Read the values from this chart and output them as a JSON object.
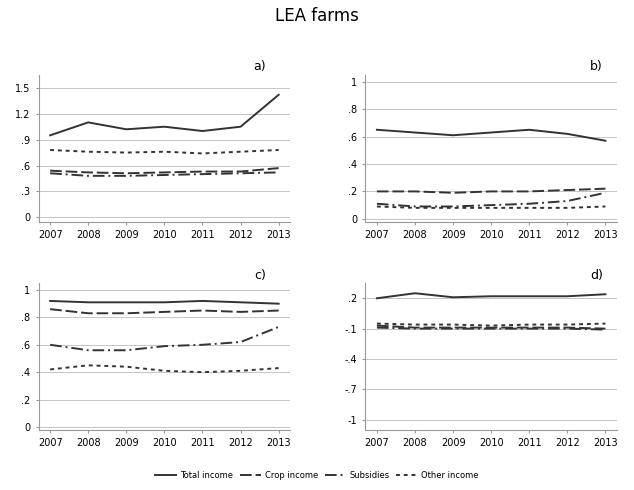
{
  "title": "LEA farms",
  "years": [
    2007,
    2008,
    2009,
    2010,
    2011,
    2012,
    2013
  ],
  "panel_labels": [
    "a)",
    "b)",
    "c)",
    "d)"
  ],
  "panel_a": {
    "ylim": [
      -0.05,
      1.65
    ],
    "yticks": [
      0,
      0.3,
      0.6,
      0.9,
      1.2,
      1.5
    ],
    "ytick_labels": [
      "0",
      ".3",
      ".6",
      ".9",
      "1.2",
      "1.5"
    ],
    "series": [
      {
        "values": [
          0.95,
          1.1,
          1.02,
          1.05,
          1.0,
          1.05,
          1.42
        ],
        "style": "solid",
        "lw": 1.4
      },
      {
        "values": [
          0.78,
          0.76,
          0.75,
          0.76,
          0.74,
          0.76,
          0.78
        ],
        "style": "dotted",
        "lw": 1.4
      },
      {
        "values": [
          0.54,
          0.52,
          0.51,
          0.52,
          0.53,
          0.53,
          0.57
        ],
        "style": "dashed",
        "lw": 1.4
      },
      {
        "values": [
          0.51,
          0.48,
          0.48,
          0.49,
          0.5,
          0.51,
          0.52
        ],
        "style": "dashdot",
        "lw": 1.4
      }
    ]
  },
  "panel_b": {
    "ylim": [
      -0.02,
      1.05
    ],
    "yticks": [
      0,
      0.2,
      0.4,
      0.6,
      0.8,
      1.0
    ],
    "ytick_labels": [
      "0",
      ".2",
      ".4",
      ".6",
      ".8",
      "1"
    ],
    "series": [
      {
        "values": [
          0.65,
          0.63,
          0.61,
          0.63,
          0.65,
          0.62,
          0.57
        ],
        "style": "solid",
        "lw": 1.4
      },
      {
        "values": [
          0.2,
          0.2,
          0.19,
          0.2,
          0.2,
          0.21,
          0.22
        ],
        "style": "dashed",
        "lw": 1.4
      },
      {
        "values": [
          0.11,
          0.09,
          0.09,
          0.1,
          0.11,
          0.13,
          0.19
        ],
        "style": "dashdot",
        "lw": 1.4
      },
      {
        "values": [
          0.09,
          0.08,
          0.08,
          0.08,
          0.08,
          0.08,
          0.09
        ],
        "style": "dotted",
        "lw": 1.4
      }
    ]
  },
  "panel_c": {
    "ylim": [
      -0.02,
      1.05
    ],
    "yticks": [
      0,
      0.2,
      0.4,
      0.6,
      0.8,
      1.0
    ],
    "ytick_labels": [
      "0",
      ".2",
      ".4",
      ".6",
      ".8",
      "1"
    ],
    "series": [
      {
        "values": [
          0.92,
          0.91,
          0.91,
          0.91,
          0.92,
          0.91,
          0.9
        ],
        "style": "solid",
        "lw": 1.4
      },
      {
        "values": [
          0.86,
          0.83,
          0.83,
          0.84,
          0.85,
          0.84,
          0.85
        ],
        "style": "dashed",
        "lw": 1.4
      },
      {
        "values": [
          0.6,
          0.56,
          0.56,
          0.59,
          0.6,
          0.62,
          0.73
        ],
        "style": "dashdot",
        "lw": 1.4
      },
      {
        "values": [
          0.42,
          0.45,
          0.44,
          0.41,
          0.4,
          0.41,
          0.43
        ],
        "style": "dotted",
        "lw": 1.4
      }
    ]
  },
  "panel_d": {
    "ylim": [
      -1.1,
      0.35
    ],
    "yticks": [
      -1.0,
      -0.7,
      -0.4,
      -0.1,
      0.2
    ],
    "ytick_labels": [
      "-1",
      "-.7",
      "-.4",
      "-.1",
      ".2"
    ],
    "series": [
      {
        "values": [
          0.2,
          0.25,
          0.21,
          0.22,
          0.22,
          0.22,
          0.24
        ],
        "style": "solid",
        "lw": 1.4
      },
      {
        "values": [
          -0.05,
          -0.06,
          -0.06,
          -0.07,
          -0.06,
          -0.06,
          -0.05
        ],
        "style": "dotted",
        "lw": 1.4
      },
      {
        "values": [
          -0.07,
          -0.09,
          -0.09,
          -0.09,
          -0.09,
          -0.09,
          -0.1
        ],
        "style": "dashed",
        "lw": 1.4
      },
      {
        "values": [
          -0.09,
          -0.1,
          -0.1,
          -0.1,
          -0.1,
          -0.1,
          -0.11
        ],
        "style": "dashdot",
        "lw": 1.4
      }
    ]
  },
  "line_color": "#333333",
  "grid_color": "#bbbbbb",
  "bg_color": "#ffffff",
  "tick_fontsize": 7,
  "label_fontsize": 9
}
